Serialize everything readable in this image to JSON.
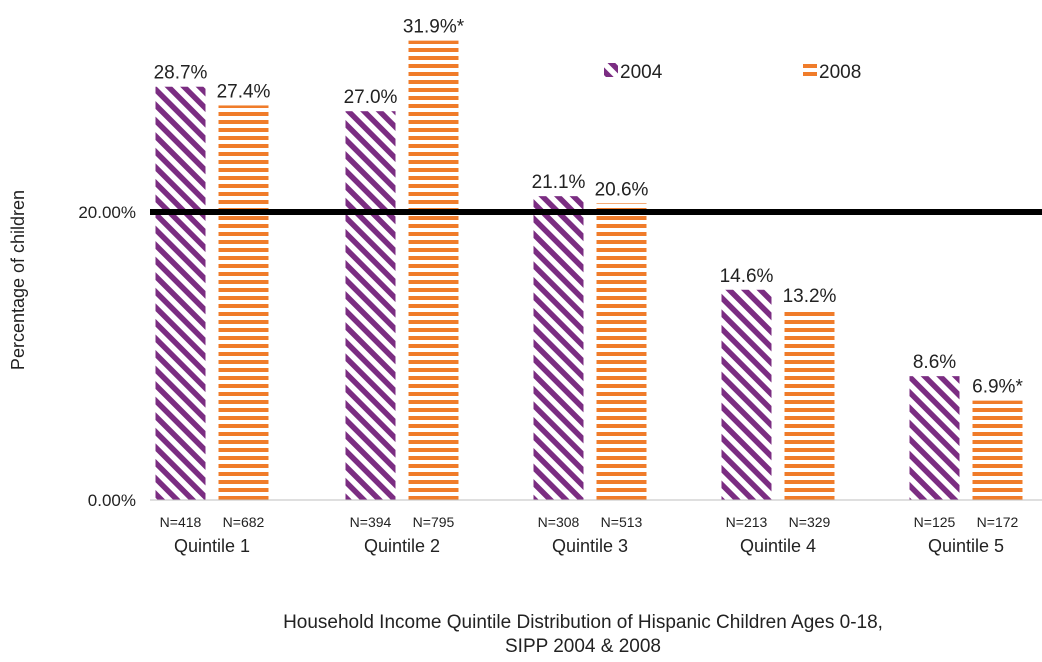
{
  "chart_data": {
    "type": "bar",
    "categories": [
      "Quintile 1",
      "Quintile 2",
      "Quintile 3",
      "Quintile 4",
      "Quintile 5"
    ],
    "series": [
      {
        "name": "2004",
        "values": [
          28.7,
          27.0,
          21.1,
          14.6,
          8.6
        ],
        "labels": [
          "28.7%",
          "27.0%",
          "21.1%",
          "14.6%",
          "8.6%"
        ],
        "n": [
          "N=418",
          "N=394",
          "N=308",
          "N=213",
          "N=125"
        ],
        "color": "#7b2d82",
        "pattern": "diagonal-stripes"
      },
      {
        "name": "2008",
        "values": [
          27.4,
          31.9,
          20.6,
          13.2,
          6.9
        ],
        "labels": [
          "27.4%",
          "31.9%*",
          "20.6%",
          "13.2%",
          "6.9%*"
        ],
        "n": [
          "N=682",
          "N=795",
          "N=513",
          "N=329",
          "N=172"
        ],
        "color": "#f07c2a",
        "pattern": "horizontal-stripes"
      }
    ],
    "ylabel": "Percentage of children",
    "y_ticks": [
      {
        "value": 0,
        "label": "0.00%"
      },
      {
        "value": 20,
        "label": "20.00%"
      }
    ],
    "ylim": [
      0,
      33
    ],
    "reference_line": {
      "value": 20,
      "color": "#000000"
    },
    "grid": false,
    "legend": "top-right",
    "title": "Household Income Quintile Distribution of Hispanic Children Ages 0-18,",
    "title_line2": "SIPP 2004 & 2008"
  }
}
